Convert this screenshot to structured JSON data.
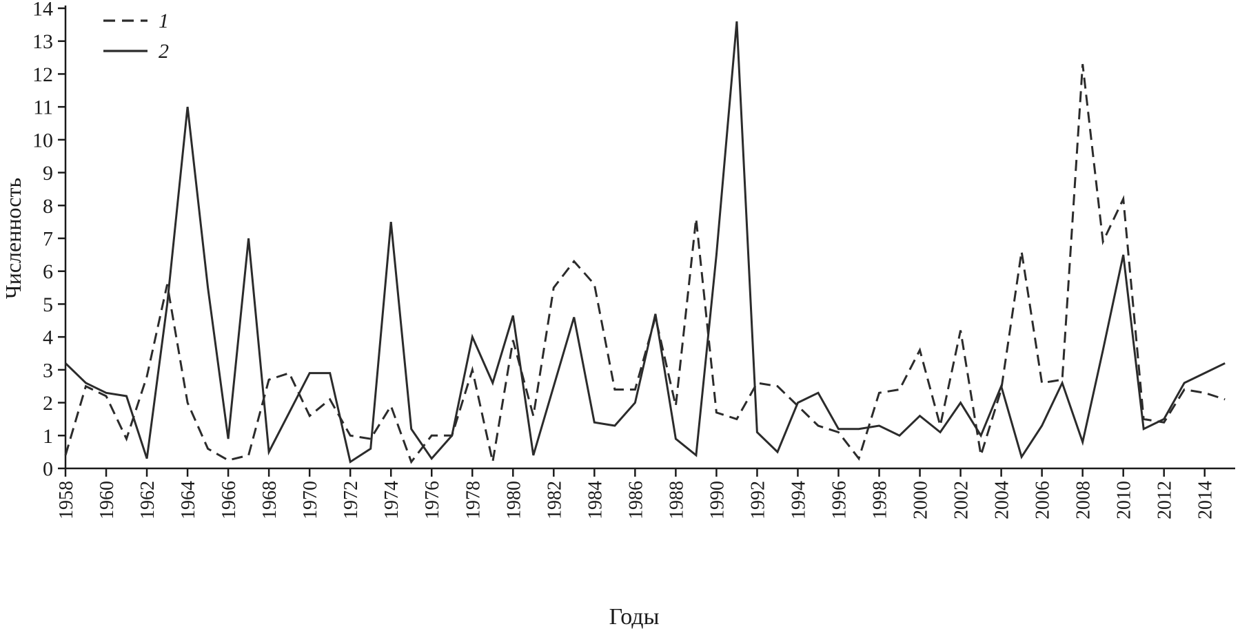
{
  "figure": {
    "background": "#ffffff",
    "line_color": "#2b2b2b",
    "axis_color": "#1a1a1a",
    "text_color": "#1b1b1b"
  },
  "chart_data": {
    "type": "line",
    "title": "",
    "xlabel": "Годы",
    "ylabel": "Численность",
    "ylim": [
      0,
      14
    ],
    "xlim": [
      1958,
      2015
    ],
    "grid": false,
    "legend_position": "top-left-inside",
    "y_ticks": [
      "0",
      "1",
      "2",
      "3",
      "4",
      "5",
      "6",
      "7",
      "8",
      "9",
      "10",
      "11",
      "12",
      "13",
      "14"
    ],
    "x_tick_labels": [
      "1958",
      "1960",
      "1962",
      "1964",
      "1966",
      "1968",
      "1970",
      "1972",
      "1974",
      "1976",
      "1978",
      "1980",
      "1982",
      "1984",
      "1986",
      "1988",
      "1990",
      "1992",
      "1994",
      "1996",
      "1998",
      "2000",
      "2002",
      "2004",
      "2006",
      "2008",
      "2010",
      "2012",
      "2014"
    ],
    "x": [
      1958,
      1959,
      1960,
      1961,
      1962,
      1963,
      1964,
      1965,
      1966,
      1967,
      1968,
      1969,
      1970,
      1971,
      1972,
      1973,
      1974,
      1975,
      1976,
      1977,
      1978,
      1979,
      1980,
      1981,
      1982,
      1983,
      1984,
      1985,
      1986,
      1987,
      1988,
      1989,
      1990,
      1991,
      1992,
      1993,
      1994,
      1995,
      1996,
      1997,
      1998,
      1999,
      2000,
      2001,
      2002,
      2003,
      2004,
      2005,
      2006,
      2007,
      2008,
      2009,
      2010,
      2011,
      2012,
      2013,
      2014,
      2015
    ],
    "series": [
      {
        "name": "1",
        "line_style": "dashed",
        "values": [
          0.4,
          2.5,
          2.2,
          0.9,
          2.8,
          5.6,
          2.0,
          0.6,
          0.25,
          0.4,
          2.7,
          2.9,
          1.6,
          2.1,
          1.0,
          0.9,
          1.9,
          0.2,
          1.0,
          1.0,
          3.0,
          0.2,
          3.9,
          1.6,
          5.5,
          6.3,
          5.6,
          2.4,
          2.4,
          4.6,
          1.9,
          7.6,
          1.7,
          1.5,
          2.6,
          2.5,
          1.9,
          1.3,
          1.1,
          0.3,
          2.3,
          2.4,
          3.6,
          1.3,
          4.2,
          0.4,
          2.4,
          6.6,
          2.6,
          2.7,
          12.3,
          6.9,
          8.2,
          1.5,
          1.4,
          2.4,
          2.3,
          2.1
        ]
      },
      {
        "name": "2",
        "line_style": "solid",
        "values": [
          3.2,
          2.6,
          2.3,
          2.2,
          0.3,
          5.0,
          11.0,
          5.5,
          0.9,
          7.0,
          0.5,
          1.7,
          2.9,
          2.9,
          0.2,
          0.6,
          7.5,
          1.2,
          0.3,
          1.0,
          4.0,
          2.6,
          4.65,
          0.4,
          2.5,
          4.6,
          1.4,
          1.3,
          2.0,
          4.7,
          0.9,
          0.4,
          6.5,
          13.6,
          1.1,
          0.5,
          2.0,
          2.3,
          1.2,
          1.2,
          1.3,
          1.0,
          1.6,
          1.1,
          2.0,
          1.0,
          2.5,
          0.35,
          1.3,
          2.6,
          0.8,
          3.6,
          6.5,
          1.2,
          1.5,
          2.6,
          2.9,
          3.2
        ]
      }
    ]
  }
}
